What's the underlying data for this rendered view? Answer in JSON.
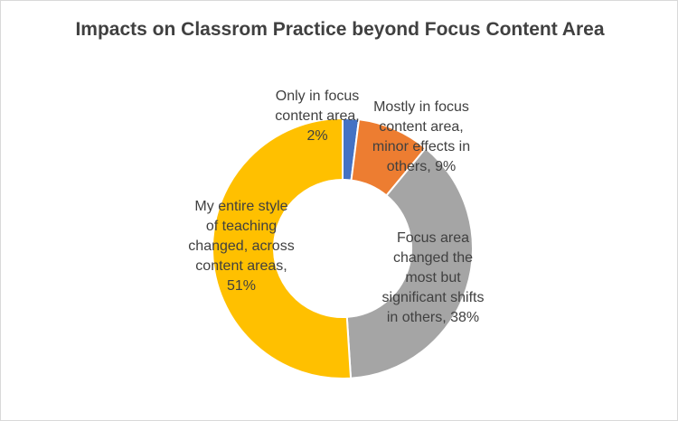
{
  "chart_data": {
    "type": "pie",
    "title": "Impacts on Classrom Practice beyond Focus Content Area",
    "slices": [
      {
        "label": "Only in focus content area",
        "value": 2,
        "display": "2%",
        "color": "#4472c4",
        "label_lines": [
          "Only in focus",
          "content area,",
          "2%"
        ]
      },
      {
        "label": "Mostly in  focus content area, minor effects in others",
        "value": 9,
        "display": "9%",
        "color": "#ed7d31",
        "label_lines": [
          "Mostly in  focus",
          "content area,",
          "minor effects in",
          "others, 9%"
        ]
      },
      {
        "label": "Focus area changed the most but significant shifts in others",
        "value": 38,
        "display": "38%",
        "color": "#a5a5a5",
        "label_lines": [
          "Focus area",
          "changed the",
          "most but",
          "significant shifts",
          "in others, 38%"
        ]
      },
      {
        "label": "My entire style of teaching changed, across content areas",
        "value": 51,
        "display": "51%",
        "color": "#ffc000",
        "label_lines": [
          "My entire style",
          "of teaching",
          "changed, across",
          "content areas,",
          "51%"
        ]
      }
    ]
  }
}
